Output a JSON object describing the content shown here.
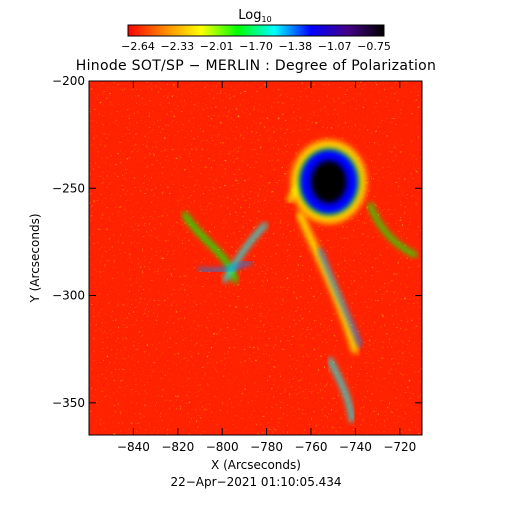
{
  "chart_data": {
    "type": "heatmap",
    "title": "Hinode SOT/SP − MERLIN : Degree of Polarization",
    "colorbar": {
      "label_main": "Log",
      "label_sub": "10",
      "ticks": [
        "−2.64",
        "−2.33",
        "−2.01",
        "−1.70",
        "−1.38",
        "−1.07",
        "−0.75"
      ],
      "range": [
        -2.64,
        -0.75
      ],
      "colors": [
        "#ff0000",
        "#ff8800",
        "#ffff00",
        "#00ff00",
        "#00ffff",
        "#0000ff",
        "#440088",
        "#000000"
      ]
    },
    "xlabel": "X (Arcseconds)",
    "ylabel": "Y (Arcseconds)",
    "xlim": [
      -860,
      -710
    ],
    "ylim": [
      -365,
      -200
    ],
    "x_ticks": [
      -840,
      -820,
      -800,
      -780,
      -760,
      -740,
      -720
    ],
    "y_ticks": [
      -200,
      -250,
      -300,
      -350
    ],
    "x_tick_labels": [
      "−840",
      "−820",
      "−800",
      "−780",
      "−760",
      "−740",
      "−720"
    ],
    "y_tick_labels": [
      "−200",
      "−250",
      "−300",
      "−350"
    ],
    "timestamp": "22−Apr−2021 01:10:05.434",
    "features": [
      {
        "x": -752,
        "y": -247,
        "level": -0.78,
        "rx": 8,
        "ry": 10
      },
      {
        "x": -752,
        "y": -247,
        "level": -1.2,
        "rx": 13,
        "ry": 15
      }
    ]
  }
}
